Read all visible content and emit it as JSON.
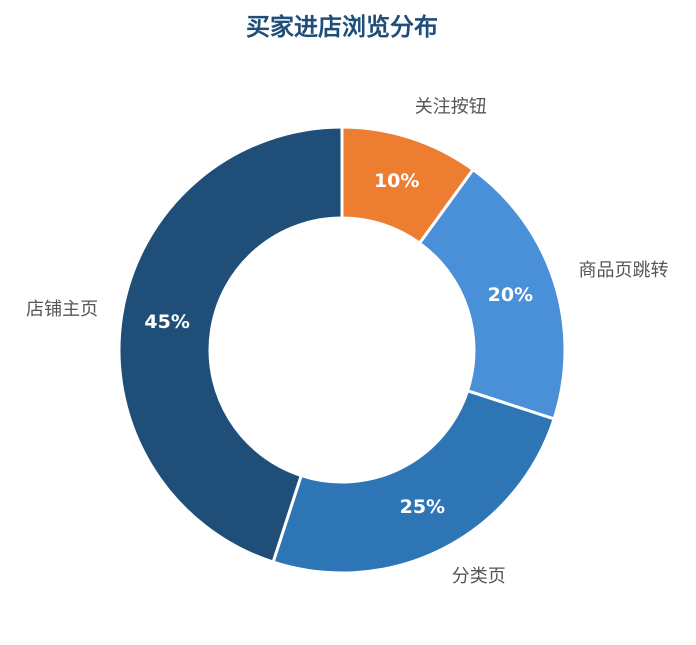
{
  "chart_data": {
    "type": "donut",
    "title": "买家进店浏览分布",
    "categories": [
      "关注按钮",
      "商品页跳转",
      "分类页",
      "店铺主页"
    ],
    "values": [
      10,
      20,
      25,
      45
    ],
    "value_labels": [
      "10%",
      "20%",
      "25%",
      "45%"
    ],
    "colors": [
      "#ED7D31",
      "#4A90D9",
      "#2E75B6",
      "#1F4E79"
    ]
  }
}
